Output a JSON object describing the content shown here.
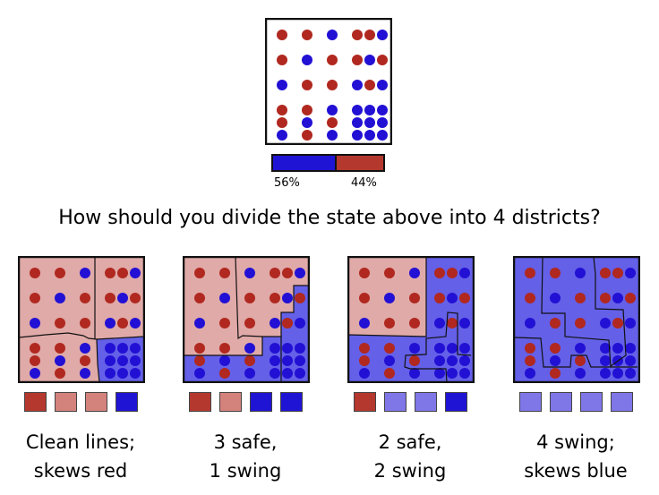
{
  "colors": {
    "red_dot": "#b0281f",
    "blue_dot": "#2210d4",
    "pink_fill": "#e0aaa8",
    "blue_fill": "#6460e8",
    "safe_red": "#b5382f",
    "swing_red": "#d4827c",
    "safe_blue": "#2014d4",
    "swing_blue": "#7f76e8"
  },
  "state": {
    "dots": [
      [
        "R",
        "R",
        "B",
        "R",
        "R",
        "B"
      ],
      [
        "R",
        "B",
        "R",
        "R",
        "B",
        "R"
      ],
      [
        "B",
        "R",
        "R",
        "B",
        "R",
        "B"
      ],
      [
        "R",
        "R",
        "B",
        "B",
        "B",
        "B"
      ],
      [
        "R",
        "B",
        "R",
        "B",
        "B",
        "B"
      ],
      [
        "B",
        "R",
        "B",
        "B",
        "B",
        "B"
      ]
    ],
    "blue_share": 56,
    "red_share": 44,
    "blue_label": "56%",
    "red_label": "44%"
  },
  "question": "How should you divide the state above into 4 districts?",
  "plans": [
    {
      "caption_line1": "Clean lines;",
      "caption_line2": "skews red",
      "districts": [
        "safe_red",
        "swing_red",
        "swing_red",
        "safe_blue"
      ]
    },
    {
      "caption_line1": "3 safe,",
      "caption_line2": "1 swing",
      "districts": [
        "safe_red",
        "swing_red",
        "safe_blue",
        "safe_blue"
      ]
    },
    {
      "caption_line1": "2 safe,",
      "caption_line2": "2 swing",
      "districts": [
        "safe_red",
        "swing_blue",
        "swing_blue",
        "safe_blue"
      ]
    },
    {
      "caption_line1": "4 swing;",
      "caption_line2": "skews blue",
      "districts": [
        "swing_blue",
        "swing_blue",
        "swing_blue",
        "swing_blue"
      ]
    }
  ]
}
